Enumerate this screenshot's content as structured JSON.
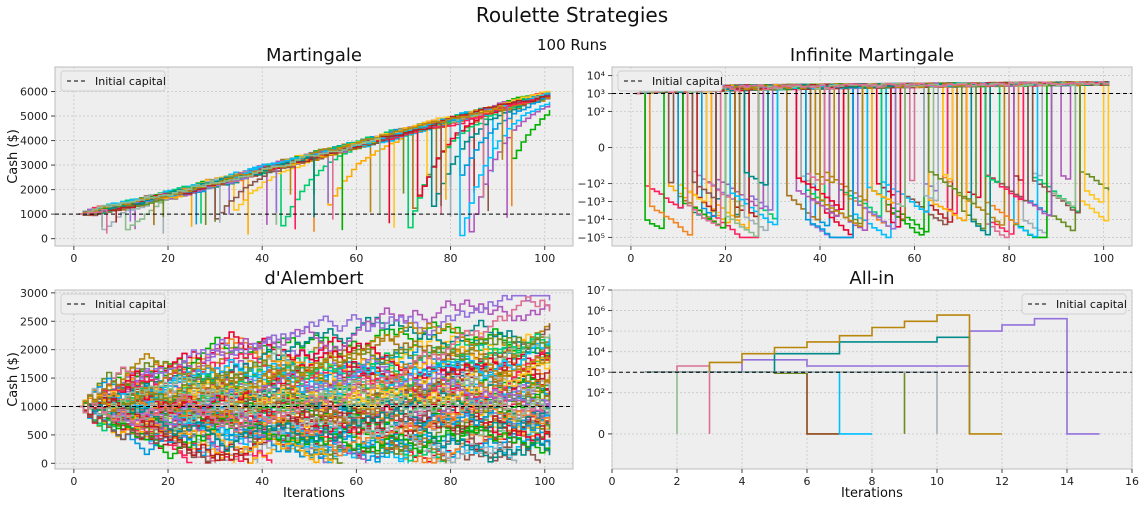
{
  "figure": {
    "suptitle": "Roulette Strategies",
    "subtitle": "100 Runs"
  },
  "palette": [
    "#FF1F5B",
    "#00CD6C",
    "#009ADE",
    "#AF58BA",
    "#FFC61E",
    "#F28522",
    "#A0B1BA",
    "#A6761D",
    "#E9002D",
    "#FFAA00",
    "#00B000",
    "#8C564B",
    "#00BFFF",
    "#9370DB",
    "#6B8E23",
    "#B22222",
    "#008B8B",
    "#B8860B",
    "#8FBC8F",
    "#DB7093"
  ],
  "chart_data": [
    {
      "id": "martingale",
      "type": "line",
      "drawstyle": "steps",
      "title": "Martingale",
      "xlabel": "",
      "ylabel": "Cash ($)",
      "xlim": [
        -4,
        106
      ],
      "ylim": [
        -300,
        7000
      ],
      "xticks": [
        0,
        20,
        40,
        60,
        80,
        100
      ],
      "yticks": [
        0,
        1000,
        2000,
        3000,
        4000,
        5000,
        6000
      ],
      "grid": true,
      "legend": {
        "label": "Initial capital",
        "position": "top-left"
      },
      "reference_line": {
        "y": 1000,
        "style": "dashed"
      },
      "n_runs": 100,
      "start_value": 1000,
      "max_iterations": 101,
      "envelope": {
        "x": [
          0,
          20,
          40,
          60,
          80,
          100
        ],
        "upper": [
          1000,
          2300,
          3600,
          4400,
          5300,
          6600
        ],
        "typical": [
          1000,
          1900,
          3000,
          4000,
          5000,
          6000
        ]
      }
    },
    {
      "id": "infinite-martingale",
      "type": "line",
      "drawstyle": "steps",
      "title": "Infinite Martingale",
      "xlabel": "",
      "ylabel": "",
      "yscale": "symlog",
      "xlim": [
        -4,
        106
      ],
      "ylim": [
        -300000,
        30000
      ],
      "xticks": [
        0,
        20,
        40,
        60,
        80,
        100
      ],
      "yticks": [
        10000,
        1000,
        100,
        0,
        -100,
        -1000,
        -10000,
        -100000
      ],
      "ytick_labels": [
        "10⁴",
        "10³",
        "10²",
        "0",
        "−10²",
        "−10³",
        "−10⁴",
        "−10⁵"
      ],
      "grid": true,
      "legend": {
        "label": "Initial capital",
        "position": "top-left"
      },
      "reference_line": {
        "y": 1000,
        "style": "dashed"
      },
      "n_runs": 100,
      "start_value": 1000,
      "max_iterations": 101,
      "min_value": -100000
    },
    {
      "id": "dalembert",
      "type": "line",
      "drawstyle": "steps",
      "title": "d'Alembert",
      "xlabel": "Iterations",
      "ylabel": "Cash ($)",
      "xlim": [
        -4,
        106
      ],
      "ylim": [
        -100,
        3050
      ],
      "xticks": [
        0,
        20,
        40,
        60,
        80,
        100
      ],
      "yticks": [
        0,
        500,
        1000,
        1500,
        2000,
        2500,
        3000
      ],
      "grid": true,
      "legend": {
        "label": "Initial capital",
        "position": "top-left"
      },
      "reference_line": {
        "y": 1000,
        "style": "dashed"
      },
      "n_runs": 100,
      "start_value": 1000,
      "max_iterations": 101,
      "range": [
        0,
        2950
      ]
    },
    {
      "id": "all-in",
      "type": "line",
      "drawstyle": "steps",
      "title": "All-in",
      "xlabel": "Iterations",
      "ylabel": "",
      "yscale": "symlog",
      "xlim": [
        0,
        16
      ],
      "ylim": [
        -50,
        10000000
      ],
      "xticks": [
        0,
        2,
        4,
        6,
        8,
        10,
        12,
        14,
        16
      ],
      "yticks": [
        0,
        100,
        1000,
        10000,
        100000,
        1000000,
        10000000
      ],
      "ytick_labels": [
        "0",
        "10²",
        "10³",
        "10⁴",
        "10⁵",
        "10⁶",
        "10⁷"
      ],
      "grid": true,
      "legend": {
        "label": "Initial capital",
        "position": "top-right"
      },
      "reference_line": {
        "y": 1000,
        "style": "dashed"
      },
      "series": [
        {
          "color": "#B22222",
          "x": [
            1,
            2,
            3,
            4
          ],
          "y": [
            1000,
            1000,
            1000,
            1000
          ]
        },
        {
          "color": "#DB7093",
          "x": [
            1,
            2,
            3
          ],
          "y": [
            1000,
            2000,
            0
          ]
        },
        {
          "color": "#8FBC8F",
          "x": [
            1,
            2
          ],
          "y": [
            1000,
            0
          ]
        },
        {
          "color": "#9370DB",
          "x": [
            1,
            4,
            5,
            6,
            11,
            12,
            13,
            14,
            15
          ],
          "y": [
            1000,
            4000,
            4000,
            2000,
            100000,
            200000,
            400000,
            0,
            0
          ]
        },
        {
          "color": "#008B8B",
          "x": [
            1,
            4,
            5,
            6,
            7,
            10,
            11
          ],
          "y": [
            1000,
            1000,
            8000,
            8000,
            30000,
            50000,
            0
          ]
        },
        {
          "color": "#B8860B",
          "x": [
            1,
            3,
            4,
            5,
            6,
            7,
            8,
            9,
            10,
            11,
            12
          ],
          "y": [
            1000,
            3000,
            8000,
            16000,
            30000,
            60000,
            150000,
            300000,
            600000,
            0,
            0
          ]
        },
        {
          "color": "#8B4513",
          "x": [
            1,
            5,
            6,
            7
          ],
          "y": [
            1000,
            1000,
            0,
            0
          ]
        },
        {
          "color": "#00BFFF",
          "x": [
            1,
            6,
            7,
            8
          ],
          "y": [
            1000,
            1000,
            0,
            0
          ]
        },
        {
          "color": "#6B8E23",
          "x": [
            1,
            5,
            6,
            7,
            8,
            9
          ],
          "y": [
            1000,
            900,
            1000,
            1000,
            1000,
            0
          ]
        },
        {
          "color": "#A0B1BA",
          "x": [
            1,
            9,
            10
          ],
          "y": [
            1000,
            1000,
            0
          ]
        }
      ]
    }
  ]
}
